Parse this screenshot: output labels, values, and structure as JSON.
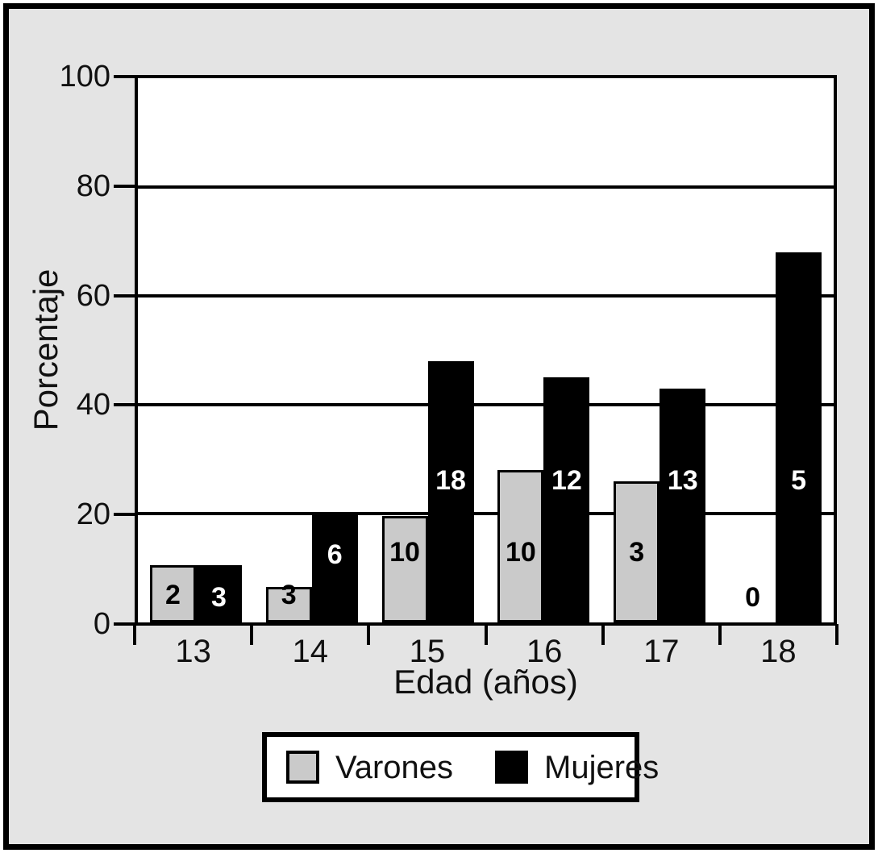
{
  "figure": {
    "panel_background": "#e4e4e4",
    "frame_color": "#000000",
    "plot_background": "#ffffff"
  },
  "chart_data": {
    "type": "bar",
    "title": "",
    "xlabel": "Edad (años)",
    "ylabel": "Porcentaje",
    "categories": [
      "13",
      "14",
      "15",
      "16",
      "17",
      "18"
    ],
    "yticks": [
      100,
      80,
      60,
      40,
      20,
      0
    ],
    "ylim": [
      0,
      100
    ],
    "grid": "horizontal",
    "legend_position": "bottom",
    "series": [
      {
        "name": "Varones",
        "color": "#cacaca",
        "outline": "#000000",
        "label_color": "#000000",
        "values_percent": [
          10.5,
          6.5,
          19.5,
          28,
          26,
          0
        ],
        "bar_labels": [
          "2",
          "3",
          "10",
          "10",
          "3",
          "0"
        ]
      },
      {
        "name": "Mujeres",
        "color": "#000000",
        "outline": "#000000",
        "label_color": "#ffffff",
        "values_percent": [
          10.5,
          20,
          48,
          45,
          43,
          68
        ],
        "bar_labels": [
          "3",
          "6",
          "18",
          "12",
          "13",
          "5"
        ]
      }
    ]
  }
}
